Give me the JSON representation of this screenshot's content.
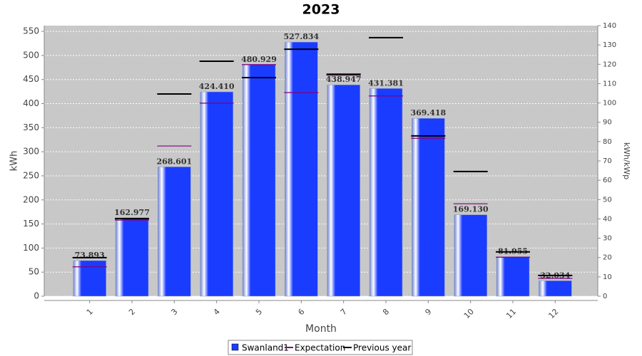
{
  "chart_data": {
    "type": "bar",
    "title": "2023",
    "x_label": "Month",
    "y_label": "kWh",
    "y2_label": "kWh/kWp",
    "categories": [
      "1",
      "2",
      "3",
      "4",
      "5",
      "6",
      "7",
      "8",
      "9",
      "10",
      "11",
      "12"
    ],
    "series": [
      {
        "name": "Swanland1",
        "style": "bar",
        "color": "#1a3cff",
        "values": [
          73.893,
          162.977,
          268.601,
          424.41,
          480.929,
          527.834,
          438.947,
          431.381,
          369.418,
          169.13,
          81.955,
          32.034
        ],
        "value_labels": [
          "73.893",
          "162.977",
          "268.601",
          "424.410",
          "480.929",
          "527.834",
          "438.947",
          "431.381",
          "369.418",
          "169.130",
          "81.955",
          "32.034"
        ]
      },
      {
        "name": "Expectation",
        "style": "level",
        "color": "#800080",
        "values": [
          61,
          158,
          312,
          401,
          481,
          423,
          459,
          416,
          328,
          192,
          81,
          37
        ]
      },
      {
        "name": "Previous year",
        "style": "level",
        "color": "#000000",
        "values": [
          80,
          161,
          420,
          488,
          454,
          513,
          461,
          537,
          333,
          259,
          92,
          43
        ]
      }
    ],
    "ylim": [
      0,
      562
    ],
    "yticks": [
      0,
      50,
      100,
      150,
      200,
      250,
      300,
      350,
      400,
      450,
      500,
      550
    ],
    "y2lim": [
      0,
      140
    ],
    "y2ticks": [
      0,
      10,
      20,
      30,
      40,
      50,
      60,
      70,
      80,
      90,
      100,
      110,
      120,
      130,
      140
    ],
    "grid": true
  }
}
